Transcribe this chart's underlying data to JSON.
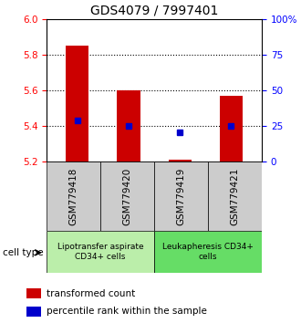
{
  "title": "GDS4079 / 7997401",
  "categories": [
    "GSM779418",
    "GSM779420",
    "GSM779419",
    "GSM779421"
  ],
  "bar_bottoms": [
    5.2,
    5.2,
    5.2,
    5.2
  ],
  "bar_tops": [
    5.85,
    5.6,
    5.21,
    5.57
  ],
  "bar_color": "#cc0000",
  "percentile_values": [
    5.43,
    5.4,
    5.365,
    5.4
  ],
  "percentile_color": "#0000cc",
  "ylim_left": [
    5.2,
    6.0
  ],
  "yticks_left": [
    5.2,
    5.4,
    5.6,
    5.8,
    6.0
  ],
  "ylim_right": [
    0,
    100
  ],
  "yticks_right": [
    0,
    25,
    50,
    75,
    100
  ],
  "ytick_labels_right": [
    "0",
    "25",
    "50",
    "75",
    "100%"
  ],
  "grid_values": [
    5.4,
    5.6,
    5.8
  ],
  "group_labels": [
    "Lipotransfer aspirate\nCD34+ cells",
    "Leukapheresis CD34+\ncells"
  ],
  "group_color_1": "#bbeeaa",
  "group_color_2": "#66dd66",
  "cell_type_label": "cell type",
  "legend_bar_label": "transformed count",
  "legend_dot_label": "percentile rank within the sample",
  "bar_width": 0.45,
  "title_fontsize": 10,
  "tick_fontsize": 7.5,
  "label_fontsize": 7.5,
  "xtick_bg_color": "#cccccc"
}
